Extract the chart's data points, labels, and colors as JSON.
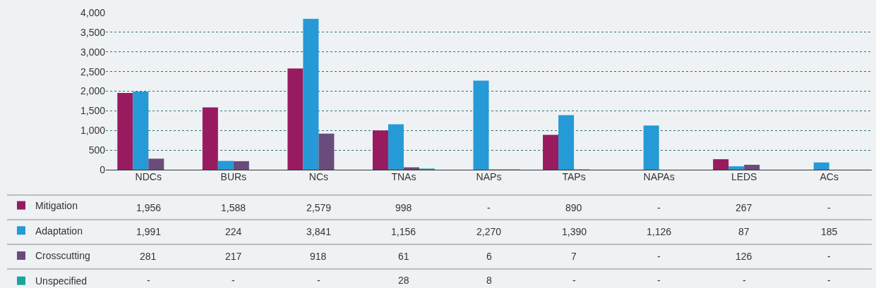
{
  "chart_data": {
    "type": "bar",
    "categories": [
      "NDCs",
      "BURs",
      "NCs",
      "TNAs",
      "NAPs",
      "TAPs",
      "NAPAs",
      "LEDS",
      "ACs"
    ],
    "series": [
      {
        "name": "Mitigation",
        "color": "#981b5f",
        "values": [
          1956,
          1588,
          2579,
          998,
          null,
          890,
          null,
          267,
          null
        ],
        "value_labels": [
          "1,956",
          "1,588",
          "2,579",
          "998",
          "-",
          "890",
          "-",
          "267",
          "-"
        ]
      },
      {
        "name": "Adaptation",
        "color": "#259ad6",
        "values": [
          1991,
          224,
          3841,
          1156,
          2270,
          1390,
          1126,
          87,
          185
        ],
        "value_labels": [
          "1,991",
          "224",
          "3,841",
          "1,156",
          "2,270",
          "1,390",
          "1,126",
          "87",
          "185"
        ]
      },
      {
        "name": "Crosscutting",
        "color": "#6a4c7c",
        "values": [
          281,
          217,
          918,
          61,
          6,
          7,
          null,
          126,
          null
        ],
        "value_labels": [
          "281",
          "217",
          "918",
          "61",
          "6",
          "7",
          "-",
          "126",
          "-"
        ]
      },
      {
        "name": "Unspecified",
        "color": "#17a59c",
        "values": [
          null,
          null,
          null,
          28,
          8,
          null,
          null,
          null,
          null
        ],
        "value_labels": [
          "-",
          "-",
          "-",
          "28",
          "8",
          "-",
          "-",
          "-",
          "-"
        ]
      }
    ],
    "ylim": [
      0,
      4000
    ],
    "yticks": [
      {
        "value": 0,
        "label": "0"
      },
      {
        "value": 500,
        "label": "500"
      },
      {
        "value": 1000,
        "label": "1,000"
      },
      {
        "value": 1500,
        "label": "1,500"
      },
      {
        "value": 2000,
        "label": "2,000"
      },
      {
        "value": 2500,
        "label": "2,500"
      },
      {
        "value": 3000,
        "label": "3,000"
      },
      {
        "value": 3500,
        "label": "3,500"
      },
      {
        "value": 4000,
        "label": "4,000"
      }
    ],
    "grid": "y",
    "legend": "bottom left"
  }
}
